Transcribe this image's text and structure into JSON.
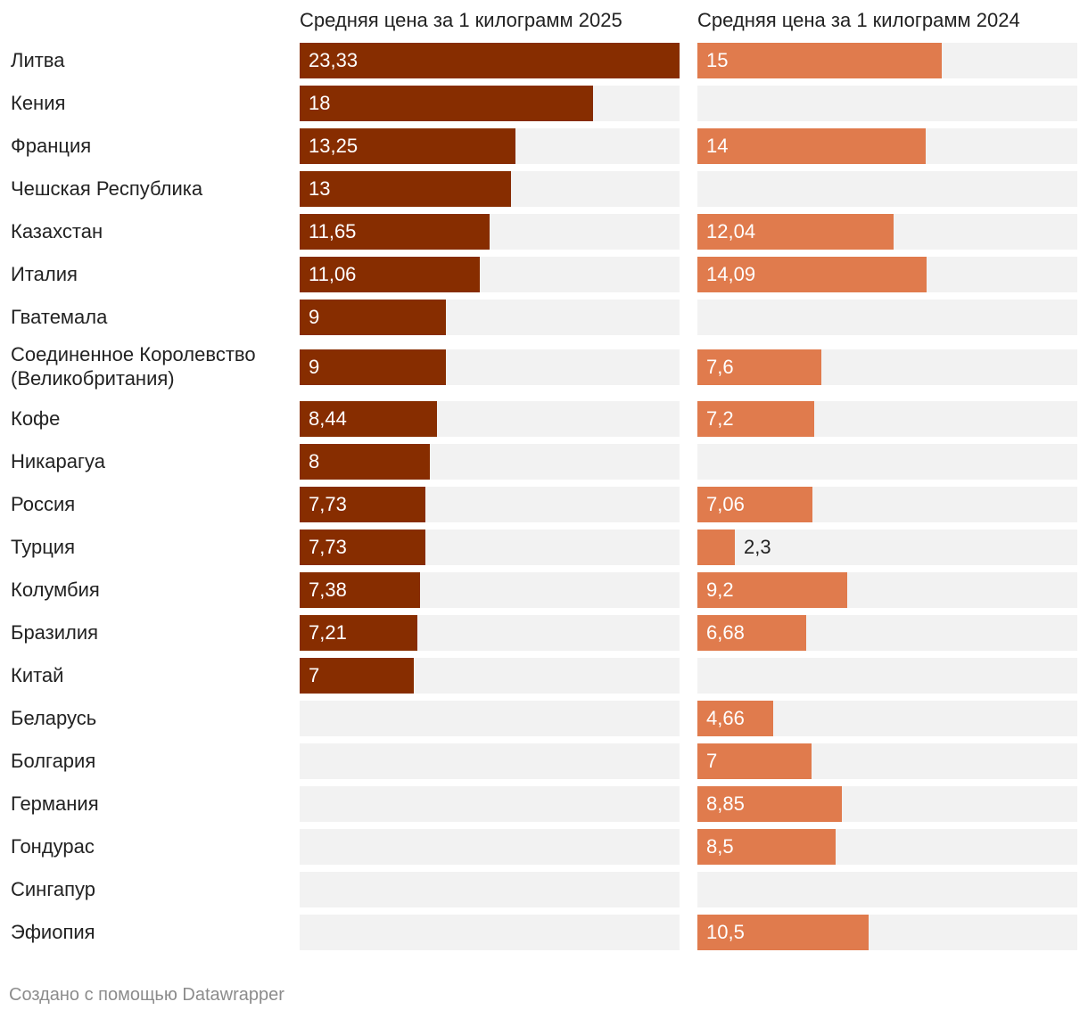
{
  "chart_data": {
    "type": "bar",
    "orientation": "horizontal",
    "categories": [
      "Литва",
      "Кения",
      "Франция",
      "Чешская Республика",
      "Казахстан",
      "Италия",
      "Гватемала",
      "Соединенное Королевство (Великобритания)",
      "Кофе",
      "Никарагуа",
      "Россия",
      "Турция",
      "Колумбия",
      "Бразилия",
      "Китай",
      "Беларусь",
      "Болгария",
      "Германия",
      "Гондурас",
      "Сингапур",
      "Эфиопия"
    ],
    "series": [
      {
        "name": "Средняя цена за 1 килограмм 2025",
        "color": "#872d00",
        "values": [
          23.33,
          18,
          13.25,
          13,
          11.65,
          11.06,
          9,
          9,
          8.44,
          8,
          7.73,
          7.73,
          7.38,
          7.21,
          7,
          null,
          null,
          null,
          null,
          null,
          null
        ],
        "labels": [
          "23,33",
          "18",
          "13,25",
          "13",
          "11,65",
          "11,06",
          "9",
          "9",
          "8,44",
          "8",
          "7,73",
          "7,73",
          "7,38",
          "7,21",
          "7",
          "",
          "",
          "",
          "",
          "",
          ""
        ],
        "max": 23.33
      },
      {
        "name": "Средняя цена за 1 килограмм 2024",
        "color": "#e07b4d",
        "values": [
          15,
          null,
          14,
          null,
          12.04,
          14.09,
          null,
          7.6,
          7.2,
          null,
          7.06,
          2.3,
          9.2,
          6.68,
          null,
          4.66,
          7,
          8.85,
          8.5,
          null,
          10.5
        ],
        "labels": [
          "15",
          "",
          "14",
          "",
          "12,04",
          "14,09",
          "",
          "7,6",
          "7,2",
          "",
          "7,06",
          "2,3",
          "9,2",
          "6,68",
          "",
          "4,66",
          "7",
          "8,85",
          "8,5",
          "",
          "10,5"
        ],
        "max": 23.33
      }
    ]
  },
  "label_lines": {
    "7": [
      "Соединенное Королевство",
      "(Великобритания)"
    ]
  },
  "footer": "Создано с помощью Datawrapper"
}
